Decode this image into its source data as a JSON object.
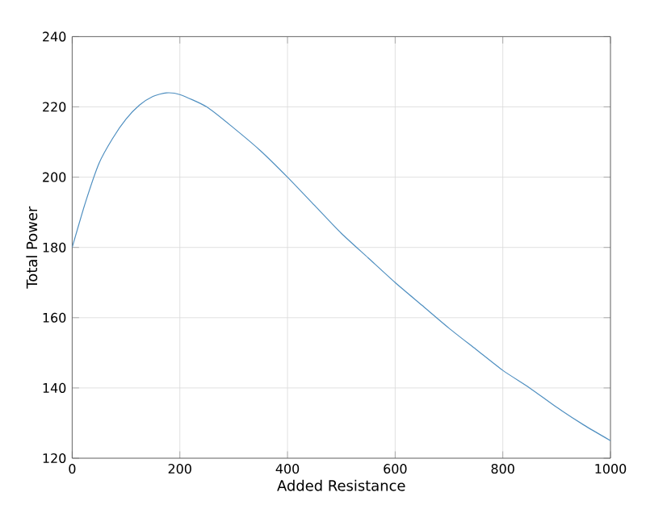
{
  "chart_data": {
    "type": "line",
    "xlabel": "Added Resistance",
    "ylabel": "Total Power",
    "x": [
      0,
      25,
      50,
      75,
      100,
      125,
      150,
      175,
      200,
      250,
      300,
      350,
      400,
      450,
      500,
      550,
      600,
      650,
      700,
      750,
      800,
      850,
      900,
      950,
      1000
    ],
    "series": [
      {
        "color": "#4f8fc0",
        "values": [
          180,
          193,
          204,
          211,
          216.5,
          220.5,
          223,
          224,
          223.5,
          220,
          214,
          207.5,
          200,
          192,
          184,
          177,
          170,
          163.5,
          157,
          151,
          145,
          140,
          134.5,
          129.5,
          125
        ]
      }
    ],
    "xlim": [
      0,
      1000
    ],
    "xticks": [
      0,
      200,
      400,
      600,
      800,
      1000
    ],
    "ylim": [
      120,
      240
    ],
    "yticks": [
      120,
      140,
      160,
      180,
      200,
      220,
      240
    ],
    "grid": true,
    "marker": "none",
    "line_style": "solid"
  }
}
